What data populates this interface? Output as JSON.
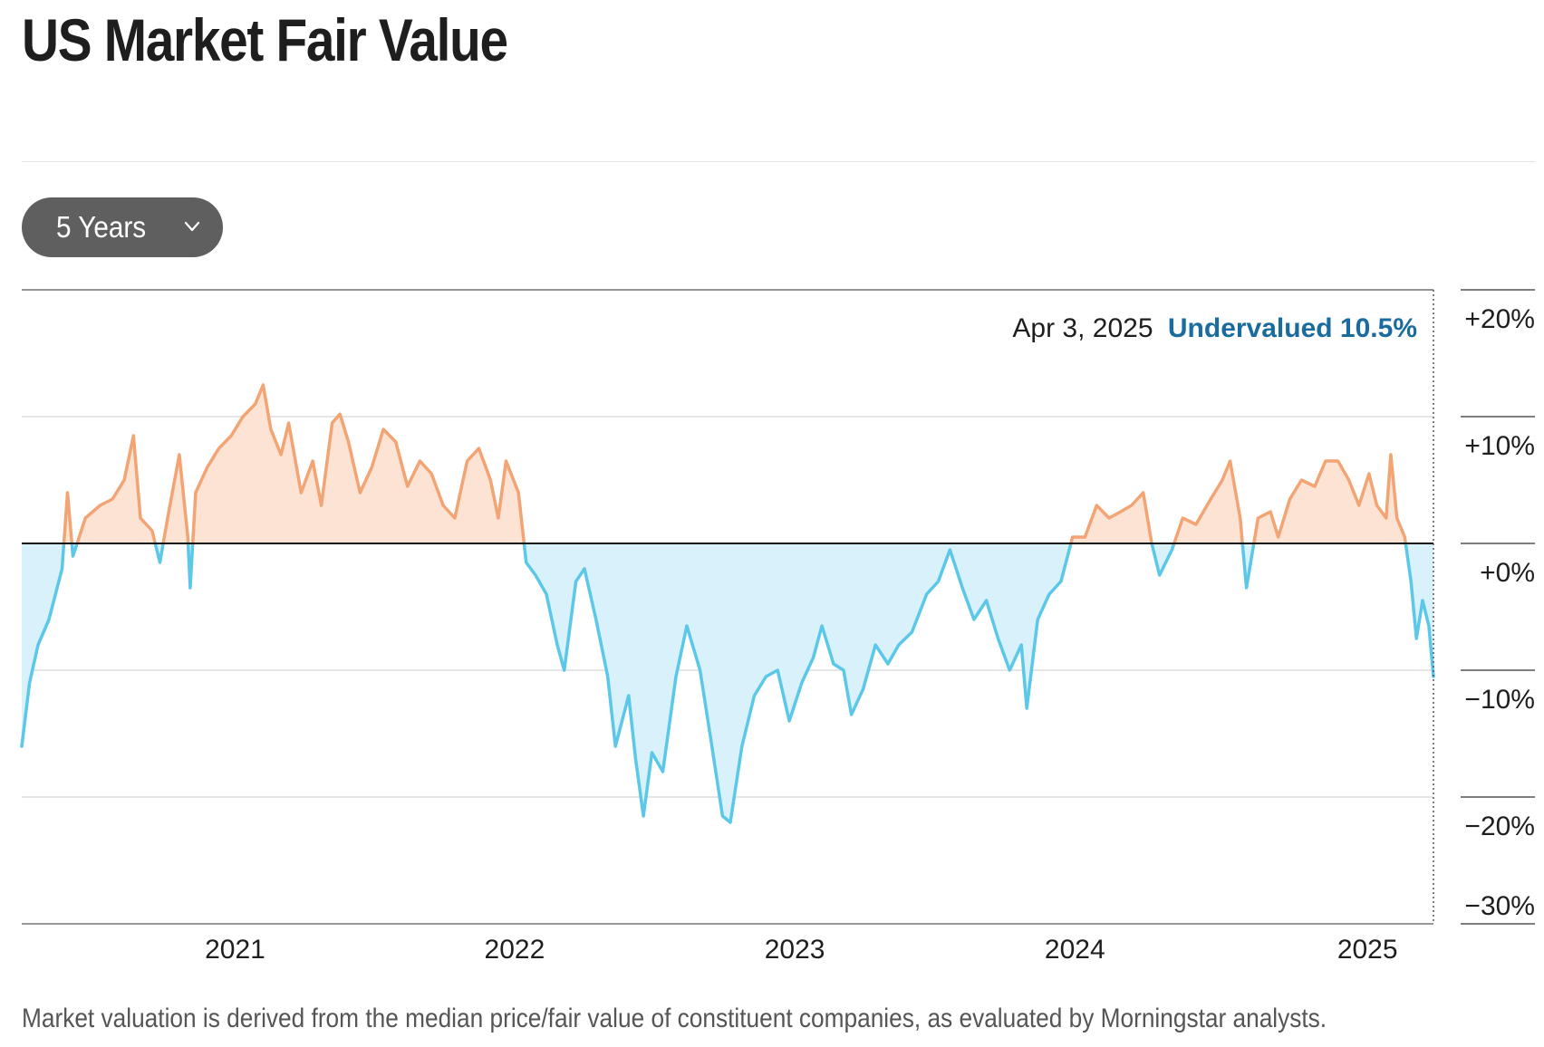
{
  "page": {
    "title": "US Market Fair Value",
    "range_selector": {
      "selected": "5 Years",
      "icon": "chevron-down-icon"
    },
    "footnote": "Market valuation is derived from the median price/fair value of constituent companies, as evaluated by Morningstar analysts."
  },
  "chart_data": {
    "type": "area",
    "title": "",
    "xlabel": "",
    "ylabel": "",
    "x_ticks": [
      "2021",
      "2022",
      "2023",
      "2024",
      "2025"
    ],
    "y_ticks": [
      "+20%",
      "+10%",
      "+0%",
      "−10%",
      "−20%",
      "−30%"
    ],
    "ylim": [
      -30,
      20
    ],
    "xlim": [
      "2020-04-10",
      "2025-04-03"
    ],
    "baseline": 0,
    "colors": {
      "overvalued": "#F2A474",
      "overvalued_fill": "#FCE3D4",
      "undervalued": "#5BC8EA",
      "undervalued_fill": "#D9F1FA",
      "status_text": "#1A6C9E"
    },
    "annotation": {
      "date": "Apr 3, 2025",
      "status": "Undervalued 10.5%"
    },
    "grid": true,
    "series": [
      {
        "points": [
          [
            "2020-04-10",
            -16
          ],
          [
            "2020-04-20",
            -11
          ],
          [
            "2020-05-01",
            -8
          ],
          [
            "2020-05-15",
            -6
          ],
          [
            "2020-06-01",
            -2
          ],
          [
            "2020-06-08",
            4
          ],
          [
            "2020-06-15",
            -1
          ],
          [
            "2020-07-01",
            2
          ],
          [
            "2020-07-20",
            3
          ],
          [
            "2020-08-05",
            3.5
          ],
          [
            "2020-08-20",
            5
          ],
          [
            "2020-09-01",
            8.5
          ],
          [
            "2020-09-10",
            2
          ],
          [
            "2020-09-25",
            1
          ],
          [
            "2020-10-05",
            -1.5
          ],
          [
            "2020-10-15",
            2
          ],
          [
            "2020-10-30",
            7
          ],
          [
            "2020-11-10",
            0.5
          ],
          [
            "2020-11-13",
            -3.5
          ],
          [
            "2020-11-20",
            4
          ],
          [
            "2020-12-05",
            6
          ],
          [
            "2020-12-20",
            7.5
          ],
          [
            "2021-01-05",
            8.5
          ],
          [
            "2021-01-20",
            10
          ],
          [
            "2021-02-05",
            11
          ],
          [
            "2021-02-15",
            12.5
          ],
          [
            "2021-02-25",
            9
          ],
          [
            "2021-03-10",
            7
          ],
          [
            "2021-03-20",
            9.5
          ],
          [
            "2021-04-05",
            4
          ],
          [
            "2021-04-20",
            6.5
          ],
          [
            "2021-05-01",
            3
          ],
          [
            "2021-05-15",
            9.5
          ],
          [
            "2021-05-25",
            10.2
          ],
          [
            "2021-06-05",
            8
          ],
          [
            "2021-06-20",
            4
          ],
          [
            "2021-07-05",
            6
          ],
          [
            "2021-07-20",
            9
          ],
          [
            "2021-08-05",
            8
          ],
          [
            "2021-08-20",
            4.5
          ],
          [
            "2021-09-05",
            6.5
          ],
          [
            "2021-09-20",
            5.5
          ],
          [
            "2021-10-05",
            3
          ],
          [
            "2021-10-20",
            2
          ],
          [
            "2021-11-05",
            6.5
          ],
          [
            "2021-11-20",
            7.5
          ],
          [
            "2021-12-05",
            5
          ],
          [
            "2021-12-15",
            2
          ],
          [
            "2021-12-25",
            6.5
          ],
          [
            "2022-01-10",
            4
          ],
          [
            "2022-01-20",
            -1.5
          ],
          [
            "2022-02-01",
            -2.5
          ],
          [
            "2022-02-15",
            -4
          ],
          [
            "2022-03-01",
            -8
          ],
          [
            "2022-03-10",
            -10
          ],
          [
            "2022-03-25",
            -3
          ],
          [
            "2022-04-05",
            -2
          ],
          [
            "2022-04-20",
            -6
          ],
          [
            "2022-05-05",
            -10.5
          ],
          [
            "2022-05-15",
            -16
          ],
          [
            "2022-06-01",
            -12
          ],
          [
            "2022-06-10",
            -17
          ],
          [
            "2022-06-20",
            -21.5
          ],
          [
            "2022-07-01",
            -16.5
          ],
          [
            "2022-07-15",
            -18
          ],
          [
            "2022-08-01",
            -10.5
          ],
          [
            "2022-08-15",
            -6.5
          ],
          [
            "2022-09-01",
            -10
          ],
          [
            "2022-09-15",
            -15.5
          ],
          [
            "2022-09-30",
            -21.5
          ],
          [
            "2022-10-10",
            -22
          ],
          [
            "2022-10-25",
            -16
          ],
          [
            "2022-11-10",
            -12
          ],
          [
            "2022-11-25",
            -10.5
          ],
          [
            "2022-12-10",
            -10
          ],
          [
            "2022-12-25",
            -14
          ],
          [
            "2023-01-10",
            -11
          ],
          [
            "2023-01-25",
            -9
          ],
          [
            "2023-02-05",
            -6.5
          ],
          [
            "2023-02-20",
            -9.5
          ],
          [
            "2023-03-05",
            -10
          ],
          [
            "2023-03-15",
            -13.5
          ],
          [
            "2023-03-30",
            -11.5
          ],
          [
            "2023-04-15",
            -8
          ],
          [
            "2023-05-01",
            -9.5
          ],
          [
            "2023-05-15",
            -8
          ],
          [
            "2023-06-01",
            -7
          ],
          [
            "2023-06-20",
            -4
          ],
          [
            "2023-07-05",
            -3
          ],
          [
            "2023-07-20",
            -0.5
          ],
          [
            "2023-08-05",
            -3.5
          ],
          [
            "2023-08-20",
            -6
          ],
          [
            "2023-09-05",
            -4.5
          ],
          [
            "2023-09-20",
            -7.5
          ],
          [
            "2023-10-05",
            -10
          ],
          [
            "2023-10-20",
            -8
          ],
          [
            "2023-10-27",
            -13
          ],
          [
            "2023-11-10",
            -6
          ],
          [
            "2023-11-25",
            -4
          ],
          [
            "2023-12-10",
            -3
          ],
          [
            "2023-12-25",
            0.5
          ],
          [
            "2024-01-10",
            0.5
          ],
          [
            "2024-01-25",
            3
          ],
          [
            "2024-02-10",
            2
          ],
          [
            "2024-02-25",
            2.5
          ],
          [
            "2024-03-10",
            3
          ],
          [
            "2024-03-25",
            4
          ],
          [
            "2024-04-05",
            0
          ],
          [
            "2024-04-15",
            -2.5
          ],
          [
            "2024-05-01",
            -0.5
          ],
          [
            "2024-05-15",
            2
          ],
          [
            "2024-06-01",
            1.5
          ],
          [
            "2024-06-20",
            3.5
          ],
          [
            "2024-07-05",
            5
          ],
          [
            "2024-07-15",
            6.5
          ],
          [
            "2024-07-28",
            2
          ],
          [
            "2024-08-05",
            -3.5
          ],
          [
            "2024-08-20",
            2
          ],
          [
            "2024-09-05",
            2.5
          ],
          [
            "2024-09-15",
            0.5
          ],
          [
            "2024-09-30",
            3.5
          ],
          [
            "2024-10-15",
            5
          ],
          [
            "2024-11-01",
            4.5
          ],
          [
            "2024-11-15",
            6.5
          ],
          [
            "2024-12-01",
            6.5
          ],
          [
            "2024-12-15",
            5
          ],
          [
            "2024-12-28",
            3
          ],
          [
            "2025-01-10",
            5.5
          ],
          [
            "2025-01-20",
            3
          ],
          [
            "2025-02-01",
            2
          ],
          [
            "2025-02-07",
            7
          ],
          [
            "2025-02-15",
            2
          ],
          [
            "2025-02-25",
            0.5
          ],
          [
            "2025-03-05",
            -3
          ],
          [
            "2025-03-12",
            -7.5
          ],
          [
            "2025-03-20",
            -4.5
          ],
          [
            "2025-03-28",
            -6.5
          ],
          [
            "2025-04-03",
            -10.5
          ]
        ]
      }
    ]
  }
}
